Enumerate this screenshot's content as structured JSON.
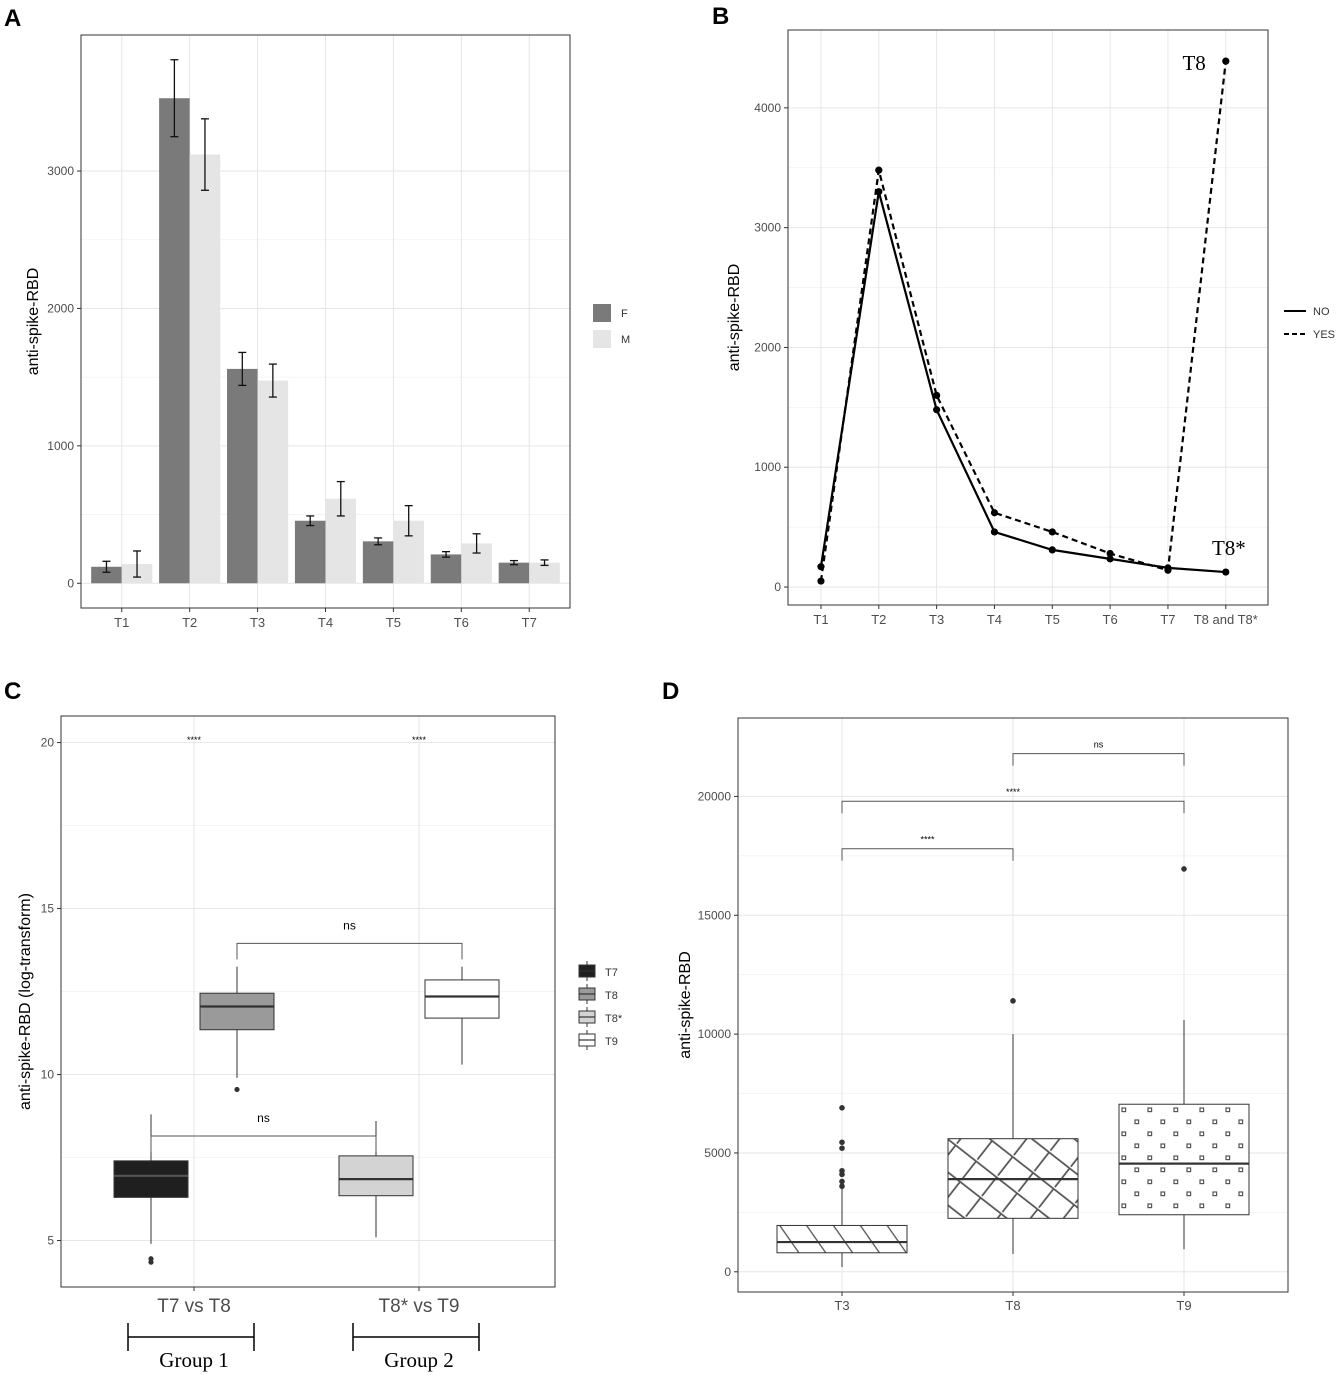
{
  "figure": {
    "panel_labels": [
      "A",
      "B",
      "C",
      "D"
    ]
  },
  "colors": {
    "F": "#7a7a7a",
    "M": "#e5e5e5",
    "T7": "#1f1f1f",
    "T8": "#9a9a9a",
    "T8star": "#d3d3d3",
    "T9": "#ffffff",
    "grid": "#e6e6e6"
  },
  "chart_data": [
    {
      "id": "A",
      "type": "bar",
      "title": "",
      "xlabel": "",
      "ylabel": "anti-spike-RBD",
      "categories": [
        "T1",
        "T2",
        "T3",
        "T4",
        "T5",
        "T6",
        "T7"
      ],
      "ylim": [
        -180,
        3990
      ],
      "yticks": [
        0,
        1000,
        2000,
        3000
      ],
      "series": [
        {
          "name": "F",
          "values": [
            120,
            3530,
            1560,
            455,
            305,
            210,
            150
          ],
          "errors": [
            40,
            280,
            120,
            35,
            25,
            20,
            15
          ]
        },
        {
          "name": "M",
          "values": [
            140,
            3120,
            1475,
            615,
            455,
            290,
            150
          ],
          "errors": [
            95,
            260,
            120,
            125,
            110,
            70,
            20
          ]
        }
      ],
      "legend": {
        "position": "right",
        "entries": [
          "F",
          "M"
        ]
      }
    },
    {
      "id": "B",
      "type": "line",
      "title": "",
      "xlabel": "",
      "ylabel": "anti-spike-RBD",
      "categories": [
        "T1",
        "T2",
        "T3",
        "T4",
        "T5",
        "T6",
        "T7",
        "T8 and T8*"
      ],
      "ylim": [
        -150,
        4650
      ],
      "yticks": [
        0,
        1000,
        2000,
        3000,
        4000
      ],
      "series": [
        {
          "name": "NO",
          "style": "solid",
          "values": [
            170,
            3300,
            1480,
            460,
            310,
            235,
            160,
            125
          ]
        },
        {
          "name": "YES",
          "style": "dashed",
          "values": [
            50,
            3480,
            1600,
            620,
            460,
            280,
            140,
            4390
          ]
        }
      ],
      "annotations": [
        "T8",
        "T8*"
      ],
      "legend": {
        "position": "right",
        "entries": [
          "NO",
          "YES"
        ]
      }
    },
    {
      "id": "C",
      "type": "box",
      "title": "",
      "xlabel": "",
      "ylabel": "anti-spike-RBD (log-transform)",
      "categories": [
        "T7 vs T8",
        "T8* vs T9"
      ],
      "group_labels": [
        "Group 1",
        "Group 2"
      ],
      "ylim": [
        3.6,
        20.8
      ],
      "yticks": [
        5,
        10,
        15,
        20
      ],
      "boxes": [
        {
          "name": "T7",
          "group": 0,
          "min": 4.9,
          "q1": 6.3,
          "median": 6.95,
          "q3": 7.4,
          "max": 8.8,
          "outliers": [
            4.35,
            4.45
          ]
        },
        {
          "name": "T8",
          "group": 0,
          "min": 9.9,
          "q1": 11.35,
          "median": 12.05,
          "q3": 12.45,
          "max": 13.25,
          "outliers": [
            9.55
          ]
        },
        {
          "name": "T8*",
          "group": 1,
          "min": 5.1,
          "q1": 6.35,
          "median": 6.85,
          "q3": 7.55,
          "max": 8.6,
          "outliers": []
        },
        {
          "name": "T9",
          "group": 1,
          "min": 10.3,
          "q1": 11.7,
          "median": 12.35,
          "q3": 12.85,
          "max": 13.25,
          "outliers": []
        }
      ],
      "significance": [
        {
          "label": "****",
          "x_group": 0,
          "y": 20.1
        },
        {
          "label": "****",
          "x_group": 1,
          "y": 20.1
        },
        {
          "label": "ns",
          "from": "T8",
          "to": "T9",
          "y": 13.95
        },
        {
          "label": "ns",
          "from": "T7",
          "to": "T8*",
          "y": 8.15
        }
      ],
      "legend": {
        "position": "right",
        "entries": [
          "T7",
          "T8",
          "T8*",
          "T9"
        ]
      }
    },
    {
      "id": "D",
      "type": "box",
      "title": "",
      "xlabel": "",
      "ylabel": "anti-spike-RBD",
      "categories": [
        "T3",
        "T8",
        "T9"
      ],
      "ylim": [
        -850,
        23300
      ],
      "yticks": [
        0,
        5000,
        10000,
        15000,
        20000
      ],
      "boxes": [
        {
          "name": "T3",
          "pattern": "diagonal-lines",
          "min": 200,
          "q1": 800,
          "median": 1250,
          "q3": 1950,
          "max": 3500,
          "outliers": [
            3600,
            3800,
            4100,
            4250,
            5200,
            5450,
            6900
          ]
        },
        {
          "name": "T8",
          "pattern": "crosshatch",
          "min": 750,
          "q1": 2250,
          "median": 3900,
          "q3": 5600,
          "max": 10000,
          "outliers": [
            11400
          ]
        },
        {
          "name": "T9",
          "pattern": "dots",
          "min": 950,
          "q1": 2400,
          "median": 4550,
          "q3": 7050,
          "max": 10600,
          "outliers": [
            16950
          ]
        }
      ],
      "significance": [
        {
          "label": "ns",
          "from": "T8",
          "to": "T9",
          "y": 21800
        },
        {
          "label": "****",
          "from": "T3",
          "to": "T9",
          "y": 19800
        },
        {
          "label": "****",
          "from": "T3",
          "to": "T8",
          "y": 17800
        }
      ]
    }
  ]
}
